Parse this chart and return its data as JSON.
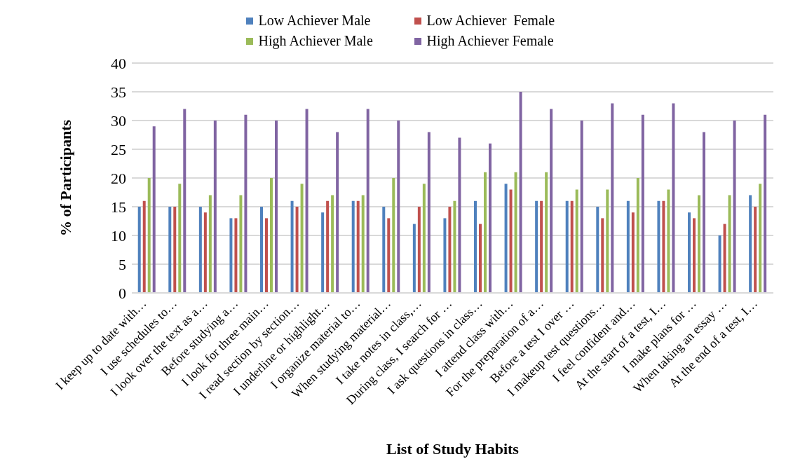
{
  "chart_data": {
    "type": "bar",
    "xlabel": "List of Study Habits",
    "ylabel": "% of Participants",
    "categories": [
      "I keep up to date with…",
      "I use schedules to…",
      "I look over the text as a…",
      "Before studying a…",
      "I look for three main…",
      "I read section by section…",
      "I underline or highlight…",
      "I organize material to…",
      "When studying material…",
      "I take notes in class,…",
      "During class, I search for …",
      "I ask questions in class…",
      "I attend class with…",
      "For the preparation of a…",
      "Before a test I over …",
      "I makeup test questions…",
      "I feel confident and…",
      "At the start of a test, I…",
      "I make plans for …",
      "When taking an essay …",
      "At the end of a test, I…"
    ],
    "series": [
      {
        "name": "Low Achiever Male",
        "color": "#4f81bd",
        "values": [
          15,
          15,
          15,
          13,
          15,
          16,
          14,
          16,
          15,
          12,
          13,
          16,
          19,
          16,
          16,
          15,
          16,
          16,
          14,
          10,
          17
        ]
      },
      {
        "name": "Low Achiever  Female",
        "color": "#c0504d",
        "values": [
          16,
          15,
          14,
          13,
          13,
          15,
          16,
          16,
          13,
          15,
          15,
          12,
          18,
          16,
          16,
          13,
          14,
          16,
          13,
          12,
          15
        ]
      },
      {
        "name": "High Achiever Male",
        "color": "#9bbb59",
        "values": [
          20,
          19,
          17,
          17,
          20,
          19,
          17,
          17,
          20,
          19,
          16,
          21,
          21,
          21,
          18,
          18,
          20,
          18,
          17,
          17,
          19
        ]
      },
      {
        "name": "High Achiever Female",
        "color": "#8064a2",
        "values": [
          29,
          32,
          30,
          31,
          30,
          32,
          28,
          32,
          30,
          28,
          27,
          26,
          35,
          32,
          30,
          33,
          31,
          33,
          28,
          30,
          31
        ]
      }
    ],
    "ylim": [
      0,
      40
    ],
    "yticks": [
      0,
      5,
      10,
      15,
      20,
      25,
      30,
      35,
      40
    ],
    "grid": "y",
    "legend": "top"
  }
}
